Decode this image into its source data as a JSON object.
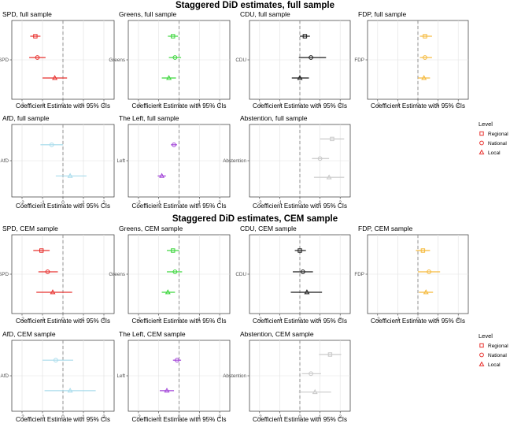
{
  "sections": [
    {
      "title": "Staggered DiD estimates, full sample",
      "xlabel": "Coefficient Estimate with 95% CIs",
      "panels": [
        {
          "title": "SPD, full sample",
          "party": "SPD",
          "color": "#e8302d",
          "xlim": [
            -2.5,
            2.5
          ],
          "points": [
            {
              "level": "Regional",
              "est": -1.35,
              "lo": -1.6,
              "hi": -1.1
            },
            {
              "level": "National",
              "est": -1.25,
              "lo": -1.65,
              "hi": -0.85
            },
            {
              "level": "Local",
              "est": -0.4,
              "lo": -1.0,
              "hi": 0.2
            }
          ]
        },
        {
          "title": "Greens, full sample",
          "party": "Greens",
          "color": "#3dd63d",
          "xlim": [
            -2.5,
            2.5
          ],
          "points": [
            {
              "level": "Regional",
              "est": -0.3,
              "lo": -0.55,
              "hi": -0.05
            },
            {
              "level": "National",
              "est": -0.2,
              "lo": -0.5,
              "hi": 0.1
            },
            {
              "level": "Local",
              "est": -0.5,
              "lo": -0.85,
              "hi": -0.15
            }
          ]
        },
        {
          "title": "CDU, full sample",
          "party": "CDU",
          "color": "#1a1a1a",
          "xlim": [
            -2.5,
            2.5
          ],
          "points": [
            {
              "level": "Regional",
              "est": 0.25,
              "lo": 0.0,
              "hi": 0.5
            },
            {
              "level": "National",
              "est": 0.55,
              "lo": -0.05,
              "hi": 1.3
            },
            {
              "level": "Local",
              "est": 0.0,
              "lo": -0.4,
              "hi": 0.45
            }
          ]
        },
        {
          "title": "FDP, full sample",
          "party": "FDP",
          "color": "#f5b93a",
          "xlim": [
            -2.5,
            2.5
          ],
          "points": [
            {
              "level": "Regional",
              "est": 0.35,
              "lo": 0.1,
              "hi": 0.7
            },
            {
              "level": "National",
              "est": 0.35,
              "lo": 0.1,
              "hi": 0.7
            },
            {
              "level": "Local",
              "est": 0.3,
              "lo": 0.0,
              "hi": 0.6
            }
          ]
        },
        {
          "title": "AfD, full sample",
          "party": "AfD",
          "color": "#a8dcec",
          "xlim": [
            -2.5,
            2.5
          ],
          "points": [
            {
              "level": "National",
              "est": -0.55,
              "lo": -1.1,
              "hi": 0.0
            },
            {
              "level": "Local",
              "est": 0.35,
              "lo": -0.35,
              "hi": 1.15
            }
          ]
        },
        {
          "title": "The Left, full sample",
          "party": "Left",
          "color": "#a244d8",
          "xlim": [
            -2.5,
            2.5
          ],
          "points": [
            {
              "level": "National",
              "est": -0.25,
              "lo": -0.4,
              "hi": -0.1
            },
            {
              "level": "Local",
              "est": -0.85,
              "lo": -1.05,
              "hi": -0.65
            }
          ]
        },
        {
          "title": "Abstention, full sample",
          "party": "Abstention",
          "color": "#c9c9c9",
          "xlim": [
            -2.5,
            2.5
          ],
          "points": [
            {
              "level": "Regional",
              "est": 1.6,
              "lo": 1.0,
              "hi": 2.2
            },
            {
              "level": "National",
              "est": 1.0,
              "lo": 0.6,
              "hi": 1.45
            },
            {
              "level": "Local",
              "est": 1.45,
              "lo": 0.7,
              "hi": 2.2
            }
          ]
        }
      ]
    },
    {
      "title": "Staggered DiD estimates, CEM sample",
      "xlabel": "Coefficient Estimate with 95% CIs",
      "panels": [
        {
          "title": "SPD, CEM sample",
          "party": "SPD",
          "color": "#e8302d",
          "xlim": [
            -2.5,
            2.5
          ],
          "points": [
            {
              "level": "Regional",
              "est": -1.05,
              "lo": -1.45,
              "hi": -0.65
            },
            {
              "level": "National",
              "est": -0.75,
              "lo": -1.2,
              "hi": -0.25
            },
            {
              "level": "Local",
              "est": -0.5,
              "lo": -1.3,
              "hi": 0.45
            }
          ]
        },
        {
          "title": "Greens, CEM sample",
          "party": "Greens",
          "color": "#3dd63d",
          "xlim": [
            -2.5,
            2.5
          ],
          "points": [
            {
              "level": "Regional",
              "est": -0.3,
              "lo": -0.6,
              "hi": 0.0
            },
            {
              "level": "National",
              "est": -0.2,
              "lo": -0.6,
              "hi": 0.15
            },
            {
              "level": "Local",
              "est": -0.55,
              "lo": -0.85,
              "hi": -0.2
            }
          ]
        },
        {
          "title": "CDU, CEM sample",
          "party": "CDU",
          "color": "#1a1a1a",
          "xlim": [
            -2.5,
            2.5
          ],
          "points": [
            {
              "level": "Regional",
              "est": 0.0,
              "lo": -0.25,
              "hi": 0.3
            },
            {
              "level": "National",
              "est": 0.15,
              "lo": -0.35,
              "hi": 0.65
            },
            {
              "level": "Local",
              "est": 0.35,
              "lo": -0.45,
              "hi": 1.1
            }
          ]
        },
        {
          "title": "FDP, CEM sample",
          "party": "FDP",
          "color": "#f5b93a",
          "xlim": [
            -2.5,
            2.5
          ],
          "points": [
            {
              "level": "Regional",
              "est": 0.25,
              "lo": -0.1,
              "hi": 0.6
            },
            {
              "level": "National",
              "est": 0.55,
              "lo": 0.0,
              "hi": 1.1
            },
            {
              "level": "Local",
              "est": 0.4,
              "lo": 0.05,
              "hi": 0.75
            }
          ]
        },
        {
          "title": "AfD, CEM sample",
          "party": "AfD",
          "color": "#a8dcec",
          "xlim": [
            -2.5,
            2.5
          ],
          "points": [
            {
              "level": "National",
              "est": -0.35,
              "lo": -1.0,
              "hi": 0.5
            },
            {
              "level": "Local",
              "est": 0.35,
              "lo": -0.9,
              "hi": 1.6
            }
          ]
        },
        {
          "title": "The Left, CEM sample",
          "party": "Left",
          "color": "#a244d8",
          "xlim": [
            -2.5,
            2.5
          ],
          "points": [
            {
              "level": "National",
              "est": -0.1,
              "lo": -0.3,
              "hi": 0.1
            },
            {
              "level": "Local",
              "est": -0.6,
              "lo": -0.95,
              "hi": -0.25
            }
          ]
        },
        {
          "title": "Abstention, CEM sample",
          "party": "Abstention",
          "color": "#c9c9c9",
          "xlim": [
            -2.5,
            2.5
          ],
          "points": [
            {
              "level": "Regional",
              "est": 1.5,
              "lo": 0.95,
              "hi": 2.05
            },
            {
              "level": "National",
              "est": 0.55,
              "lo": 0.1,
              "hi": 1.05
            },
            {
              "level": "Local",
              "est": 0.75,
              "lo": -0.05,
              "hi": 1.55
            }
          ]
        }
      ]
    }
  ],
  "ticks": [
    -2,
    -1,
    0,
    1,
    2
  ],
  "legend": {
    "title": "Level",
    "items": [
      {
        "label": "Regional",
        "shape": "square"
      },
      {
        "label": "National",
        "shape": "circle"
      },
      {
        "label": "Local",
        "shape": "triangle"
      }
    ],
    "color": "#e8302d"
  },
  "chart_data": {
    "type": "scatter",
    "note_levels": [
      "Regional",
      "National",
      "Local"
    ],
    "x_reference_line": 0,
    "xlim": [
      -2.5,
      2.5
    ],
    "grid": true,
    "legend_position": "right"
  }
}
